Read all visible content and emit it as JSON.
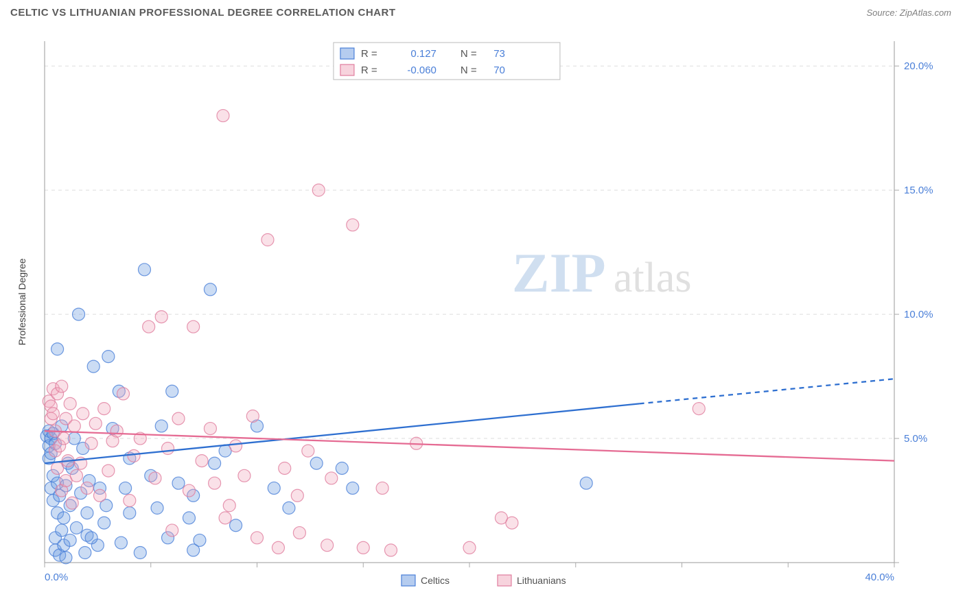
{
  "header": {
    "title": "CELTIC VS LITHUANIAN PROFESSIONAL DEGREE CORRELATION CHART",
    "source": "Source: ZipAtlas.com"
  },
  "watermark": {
    "part1": "ZIP",
    "part2": "atlas"
  },
  "chart": {
    "type": "scatter",
    "background_color": "#ffffff",
    "grid_color": "#dddddd",
    "axis_color": "#999999",
    "tick_color": "#aaaaaa",
    "tick_label_color": "#4a7fd8",
    "tick_fontsize": 15,
    "ylabel": "Professional Degree",
    "ylabel_fontsize": 14,
    "xlim": [
      0,
      40
    ],
    "ylim": [
      0,
      21
    ],
    "x_ticks": [
      0,
      5,
      10,
      15,
      20,
      25,
      30,
      35,
      40
    ],
    "x_tick_labels": {
      "0": "0.0%",
      "40": "40.0%"
    },
    "y_ticks": [
      0,
      5,
      10,
      15,
      20
    ],
    "y_tick_labels": {
      "5": "5.0%",
      "10": "10.0%",
      "15": "15.0%",
      "20": "20.0%"
    },
    "marker_radius": 9,
    "marker_fill_opacity": 0.35,
    "marker_stroke_opacity": 0.8,
    "marker_stroke_width": 1.2,
    "trend_line_width": 2.3,
    "series": [
      {
        "name": "Celtics",
        "color": "#6b9ae0",
        "stroke_color": "#4a7fd8",
        "trend_color": "#2e6fd0",
        "R": "0.127",
        "N": "73",
        "trend": {
          "x1": 0,
          "y1": 4.0,
          "x2_solid": 28,
          "y2_solid": 6.4,
          "x2_dash": 40,
          "y2_dash": 7.4
        },
        "points": [
          [
            0.1,
            5.1
          ],
          [
            0.2,
            4.7
          ],
          [
            0.2,
            5.3
          ],
          [
            0.2,
            4.2
          ],
          [
            0.3,
            5.0
          ],
          [
            0.3,
            4.4
          ],
          [
            0.3,
            3.0
          ],
          [
            0.4,
            5.2
          ],
          [
            0.4,
            2.5
          ],
          [
            0.4,
            3.5
          ],
          [
            0.5,
            4.8
          ],
          [
            0.5,
            0.5
          ],
          [
            0.5,
            1.0
          ],
          [
            0.6,
            3.2
          ],
          [
            0.6,
            2.0
          ],
          [
            0.6,
            8.6
          ],
          [
            0.7,
            0.3
          ],
          [
            0.7,
            2.7
          ],
          [
            0.8,
            1.3
          ],
          [
            0.8,
            5.5
          ],
          [
            0.9,
            0.7
          ],
          [
            0.9,
            1.8
          ],
          [
            1.0,
            3.1
          ],
          [
            1.0,
            0.2
          ],
          [
            1.1,
            4.0
          ],
          [
            1.2,
            2.3
          ],
          [
            1.2,
            0.9
          ],
          [
            1.3,
            3.8
          ],
          [
            1.4,
            5.0
          ],
          [
            1.5,
            1.4
          ],
          [
            1.6,
            10.0
          ],
          [
            1.7,
            2.8
          ],
          [
            1.8,
            4.6
          ],
          [
            1.9,
            0.4
          ],
          [
            2.0,
            2.0
          ],
          [
            2.0,
            1.1
          ],
          [
            2.1,
            3.3
          ],
          [
            2.3,
            7.9
          ],
          [
            2.5,
            0.7
          ],
          [
            2.6,
            3.0
          ],
          [
            2.8,
            1.6
          ],
          [
            2.9,
            2.3
          ],
          [
            3.0,
            8.3
          ],
          [
            3.2,
            5.4
          ],
          [
            3.5,
            6.9
          ],
          [
            3.6,
            0.8
          ],
          [
            3.8,
            3.0
          ],
          [
            4.0,
            2.0
          ],
          [
            4.0,
            4.2
          ],
          [
            4.5,
            0.4
          ],
          [
            4.7,
            11.8
          ],
          [
            5.0,
            3.5
          ],
          [
            5.3,
            2.2
          ],
          [
            5.5,
            5.5
          ],
          [
            5.8,
            1.0
          ],
          [
            6.0,
            6.9
          ],
          [
            6.3,
            3.2
          ],
          [
            6.8,
            1.8
          ],
          [
            7.0,
            2.7
          ],
          [
            7.3,
            0.9
          ],
          [
            7.8,
            11.0
          ],
          [
            8.0,
            4.0
          ],
          [
            8.5,
            4.5
          ],
          [
            9.0,
            1.5
          ],
          [
            10.0,
            5.5
          ],
          [
            10.8,
            3.0
          ],
          [
            11.5,
            2.2
          ],
          [
            12.8,
            4.0
          ],
          [
            14.0,
            3.8
          ],
          [
            14.5,
            3.0
          ],
          [
            25.5,
            3.2
          ],
          [
            7.0,
            0.5
          ],
          [
            2.2,
            1.0
          ]
        ]
      },
      {
        "name": "Lithuanians",
        "color": "#f0a8bc",
        "stroke_color": "#e07d9e",
        "trend_color": "#e56b93",
        "R": "-0.060",
        "N": "70",
        "trend": {
          "x1": 0,
          "y1": 5.3,
          "x2_solid": 40,
          "y2_solid": 4.1,
          "x2_dash": 40,
          "y2_dash": 4.1
        },
        "points": [
          [
            0.2,
            6.5
          ],
          [
            0.3,
            5.8
          ],
          [
            0.3,
            6.3
          ],
          [
            0.4,
            7.0
          ],
          [
            0.4,
            6.0
          ],
          [
            0.5,
            4.5
          ],
          [
            0.5,
            5.3
          ],
          [
            0.6,
            6.8
          ],
          [
            0.6,
            3.8
          ],
          [
            0.7,
            4.7
          ],
          [
            0.8,
            7.1
          ],
          [
            0.8,
            2.9
          ],
          [
            0.9,
            5.0
          ],
          [
            1.0,
            3.3
          ],
          [
            1.0,
            5.8
          ],
          [
            1.1,
            4.1
          ],
          [
            1.2,
            6.4
          ],
          [
            1.3,
            2.4
          ],
          [
            1.4,
            5.5
          ],
          [
            1.5,
            3.5
          ],
          [
            1.7,
            4.0
          ],
          [
            1.8,
            6.0
          ],
          [
            2.0,
            3.0
          ],
          [
            2.2,
            4.8
          ],
          [
            2.4,
            5.6
          ],
          [
            2.6,
            2.7
          ],
          [
            2.8,
            6.2
          ],
          [
            3.0,
            3.7
          ],
          [
            3.2,
            4.9
          ],
          [
            3.4,
            5.3
          ],
          [
            3.7,
            6.8
          ],
          [
            4.0,
            2.5
          ],
          [
            4.2,
            4.3
          ],
          [
            4.5,
            5.0
          ],
          [
            4.9,
            9.5
          ],
          [
            5.2,
            3.4
          ],
          [
            5.5,
            9.9
          ],
          [
            5.8,
            4.6
          ],
          [
            6.0,
            1.3
          ],
          [
            6.3,
            5.8
          ],
          [
            6.8,
            2.9
          ],
          [
            7.0,
            9.5
          ],
          [
            7.4,
            4.1
          ],
          [
            7.8,
            5.4
          ],
          [
            8.0,
            3.2
          ],
          [
            8.4,
            18.0
          ],
          [
            8.5,
            1.8
          ],
          [
            9.0,
            4.7
          ],
          [
            9.4,
            3.5
          ],
          [
            9.8,
            5.9
          ],
          [
            10.0,
            1.0
          ],
          [
            10.5,
            13.0
          ],
          [
            11.0,
            0.6
          ],
          [
            11.3,
            3.8
          ],
          [
            12.0,
            1.2
          ],
          [
            12.4,
            4.5
          ],
          [
            12.9,
            15.0
          ],
          [
            13.3,
            0.7
          ],
          [
            13.5,
            3.4
          ],
          [
            14.5,
            13.6
          ],
          [
            15.0,
            0.6
          ],
          [
            15.9,
            3.0
          ],
          [
            16.3,
            0.5
          ],
          [
            17.5,
            4.8
          ],
          [
            20.0,
            0.6
          ],
          [
            21.5,
            1.8
          ],
          [
            22.0,
            1.6
          ],
          [
            30.8,
            6.2
          ],
          [
            8.7,
            2.3
          ],
          [
            11.9,
            2.7
          ]
        ]
      }
    ],
    "legend_top": {
      "r_label": "R =",
      "n_label": "N ="
    },
    "legend_bottom": {
      "items": [
        "Celtics",
        "Lithuanians"
      ]
    }
  }
}
